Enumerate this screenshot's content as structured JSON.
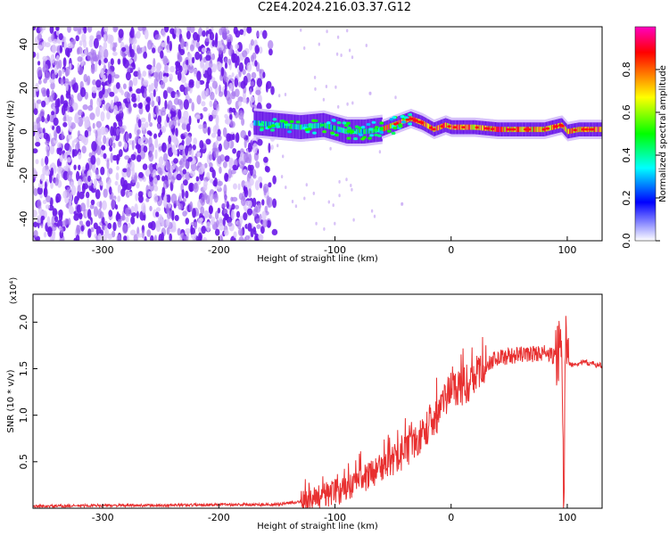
{
  "title": "C2E4.2024.216.03.37.G12",
  "colors": {
    "snr_line": "#e83030",
    "signal_violet": "#6a18e8",
    "colorbar": [
      "#ff00c0",
      "#ff0000",
      "#ffff00",
      "#00ff00",
      "#00ffff",
      "#0000ff",
      "#ffffff"
    ]
  },
  "chart_data": [
    {
      "type": "heatmap",
      "xlabel": "Height of straight line (km)",
      "ylabel": "Frequency (Hz)",
      "xlim": [
        -360,
        130
      ],
      "ylim": [
        -50,
        48
      ],
      "xticks": [
        -300,
        -200,
        -100,
        0,
        100
      ],
      "xtick_labels": [
        "-300",
        "-200",
        "-100",
        "0",
        "100"
      ],
      "yticks": [
        40,
        20,
        0,
        -20,
        -40
      ],
      "ytick_labels": [
        "40",
        "20",
        "0",
        "-20",
        "-40"
      ],
      "colorbar": {
        "label": "Normalized spectral amplitude",
        "range": [
          0,
          1
        ],
        "ticks": [
          0.0,
          0.2,
          0.4,
          0.6,
          0.8
        ],
        "tick_labels": [
          "0.0",
          "0.2",
          "0.4",
          "0.6",
          "0.8"
        ]
      },
      "regions": [
        {
          "x_range": [
            -360,
            -150
          ],
          "y_range": [
            -50,
            48
          ],
          "amplitude": 0.2,
          "note_free": true
        },
        {
          "x_range": [
            -165,
            -60
          ],
          "y_range": [
            -8,
            10
          ],
          "amplitude": 0.4
        },
        {
          "x_range": [
            -60,
            130
          ],
          "y_range": [
            -3,
            7
          ],
          "amplitude": 0.9
        }
      ],
      "ridge": {
        "x": [
          -170,
          -150,
          -130,
          -110,
          -90,
          -75,
          -60,
          -45,
          -35,
          -25,
          -15,
          -5,
          0,
          20,
          40,
          60,
          80,
          95,
          100,
          110,
          130
        ],
        "y": [
          4,
          3,
          2,
          3,
          0,
          0,
          1,
          4,
          6,
          4,
          1,
          3,
          2,
          2,
          1,
          1,
          1,
          3,
          0,
          1,
          1
        ]
      }
    },
    {
      "type": "line",
      "xlabel": "Height of straight line (km)",
      "ylabel": "SNR (10 * v/v)",
      "y_multiplier": "(x10⁴)",
      "xlim": [
        -360,
        130
      ],
      "ylim": [
        0,
        2.3
      ],
      "xticks": [
        -300,
        -200,
        -100,
        0,
        100
      ],
      "xtick_labels": [
        "-300",
        "-200",
        "-100",
        "0",
        "100"
      ],
      "yticks": [
        0.5,
        1.0,
        1.5,
        2.0
      ],
      "ytick_labels": [
        "0.5",
        "1.0",
        "1.5",
        "2.0"
      ],
      "series": [
        {
          "x": [
            -360,
            -300,
            -250,
            -200,
            -150,
            -125,
            -110,
            -100,
            -90,
            -75,
            -60,
            -45,
            -30,
            -20,
            -10,
            -5,
            0,
            10,
            20,
            30,
            40,
            60,
            80,
            90,
            95,
            97,
            99,
            100,
            105,
            115,
            130
          ],
          "y": [
            0.02,
            0.03,
            0.03,
            0.04,
            0.04,
            0.08,
            0.14,
            0.17,
            0.2,
            0.32,
            0.45,
            0.55,
            0.7,
            0.88,
            1.02,
            1.18,
            1.3,
            1.3,
            1.4,
            1.55,
            1.62,
            1.65,
            1.67,
            1.62,
            1.8,
            0.05,
            2.2,
            1.55,
            1.55,
            1.57,
            1.53
          ]
        }
      ]
    }
  ]
}
